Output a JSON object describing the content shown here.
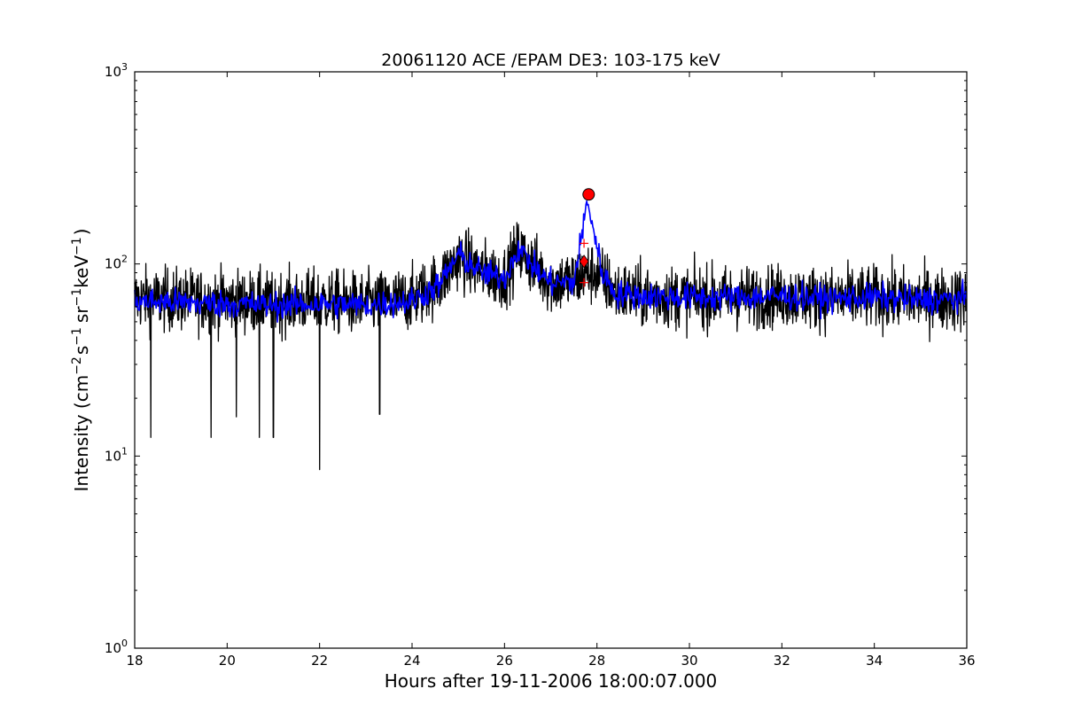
{
  "chart_data": {
    "type": "line",
    "title": "20061120 ACE /EPAM DE3: 103-175 keV",
    "xlabel": "Hours after 19-11-2006 18:00:07.000",
    "ylabel_parts": [
      "Intensity (cm",
      "−2",
      "s",
      "−1",
      "sr",
      "−1",
      "keV",
      "−1",
      ")"
    ],
    "xlim": [
      18,
      36
    ],
    "ylim": [
      1,
      1000
    ],
    "yscale": "log",
    "grid": false,
    "x_ticks": [
      18,
      20,
      22,
      24,
      26,
      28,
      30,
      32,
      34,
      36
    ],
    "x_tick_labels": [
      "18",
      "20",
      "22",
      "24",
      "26",
      "28",
      "30",
      "32",
      "34",
      "36"
    ],
    "y_ticks": [
      1,
      10,
      100,
      1000
    ],
    "y_tick_labels": [
      {
        "base": "10",
        "exp": "0"
      },
      {
        "base": "10",
        "exp": "1"
      },
      {
        "base": "10",
        "exp": "2"
      },
      {
        "base": "10",
        "exp": "3"
      }
    ],
    "series": [
      {
        "role": "raw",
        "color": "#000000",
        "profile": [
          [
            18.0,
            66
          ],
          [
            19.0,
            65
          ],
          [
            20.0,
            64
          ],
          [
            21.0,
            63
          ],
          [
            22.0,
            64
          ],
          [
            23.0,
            62
          ],
          [
            24.0,
            66
          ],
          [
            24.6,
            80
          ],
          [
            25.0,
            108
          ],
          [
            25.5,
            92
          ],
          [
            26.0,
            85
          ],
          [
            26.3,
            118
          ],
          [
            26.7,
            95
          ],
          [
            27.0,
            80
          ],
          [
            27.5,
            82
          ],
          [
            27.7,
            88
          ],
          [
            28.0,
            90
          ],
          [
            28.4,
            72
          ],
          [
            29.0,
            68
          ],
          [
            30.0,
            67
          ],
          [
            31.0,
            67
          ],
          [
            32.0,
            68
          ],
          [
            33.0,
            66
          ],
          [
            34.0,
            67
          ],
          [
            35.0,
            65
          ],
          [
            36.0,
            66
          ]
        ],
        "spikes": [
          [
            18.35,
            12.5
          ],
          [
            19.65,
            12.5
          ],
          [
            20.7,
            12.5
          ],
          [
            21.0,
            12.5
          ],
          [
            22.0,
            8.5
          ],
          [
            23.3,
            16.5
          ],
          [
            20.2,
            16
          ]
        ]
      },
      {
        "role": "smoothed",
        "color": "#0000ff",
        "profile": [
          [
            18.0,
            64
          ],
          [
            19.0,
            63
          ],
          [
            20.0,
            62
          ],
          [
            21.0,
            61
          ],
          [
            22.0,
            62
          ],
          [
            23.0,
            61
          ],
          [
            24.0,
            64
          ],
          [
            24.6,
            78
          ],
          [
            25.0,
            112
          ],
          [
            25.5,
            90
          ],
          [
            26.0,
            84
          ],
          [
            26.3,
            122
          ],
          [
            26.7,
            92
          ],
          [
            27.0,
            80
          ],
          [
            27.5,
            80
          ],
          [
            27.8,
            215
          ],
          [
            28.1,
            92
          ],
          [
            28.4,
            70
          ],
          [
            29.0,
            68
          ],
          [
            30.0,
            67
          ],
          [
            31.0,
            67
          ],
          [
            32.0,
            68
          ],
          [
            33.0,
            66
          ],
          [
            34.0,
            67
          ],
          [
            35.0,
            65
          ],
          [
            36.0,
            66
          ]
        ]
      }
    ],
    "markers": [
      {
        "x": 27.82,
        "y": 230,
        "shape": "circle",
        "color": "#ff0000"
      },
      {
        "x": 27.72,
        "y": 103,
        "shape": "diamond",
        "color": "#ff0000"
      },
      {
        "x": 27.72,
        "y": 128,
        "shape": "plus",
        "color": "#ff0000"
      },
      {
        "x": 27.72,
        "y": 80,
        "shape": "plus",
        "color": "#ff0000"
      }
    ]
  }
}
